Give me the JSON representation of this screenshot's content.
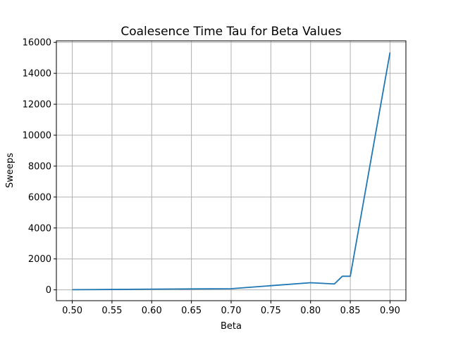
{
  "chart_data": {
    "type": "line",
    "title": "Coalesence Time Tau for Beta Values",
    "xlabel": "Beta",
    "ylabel": "Sweeps",
    "xlim": [
      0.48,
      0.92
    ],
    "ylim": [
      -700,
      16100
    ],
    "grid": true,
    "xticks": [
      0.5,
      0.55,
      0.6,
      0.65,
      0.7,
      0.75,
      0.8,
      0.85,
      0.9
    ],
    "xtick_labels": [
      "0.50",
      "0.55",
      "0.60",
      "0.65",
      "0.70",
      "0.75",
      "0.80",
      "0.85",
      "0.90"
    ],
    "yticks": [
      0,
      2000,
      4000,
      6000,
      8000,
      10000,
      12000,
      14000,
      16000
    ],
    "ytick_labels": [
      "0",
      "2000",
      "4000",
      "6000",
      "8000",
      "10000",
      "12000",
      "14000",
      "16000"
    ],
    "series": [
      {
        "color": "#1f77b4",
        "x": [
          0.5,
          0.55,
          0.6,
          0.65,
          0.7,
          0.75,
          0.8,
          0.83,
          0.84,
          0.85,
          0.9
        ],
        "y": [
          10,
          25,
          45,
          60,
          75,
          270,
          460,
          380,
          880,
          880,
          15350
        ]
      }
    ]
  }
}
